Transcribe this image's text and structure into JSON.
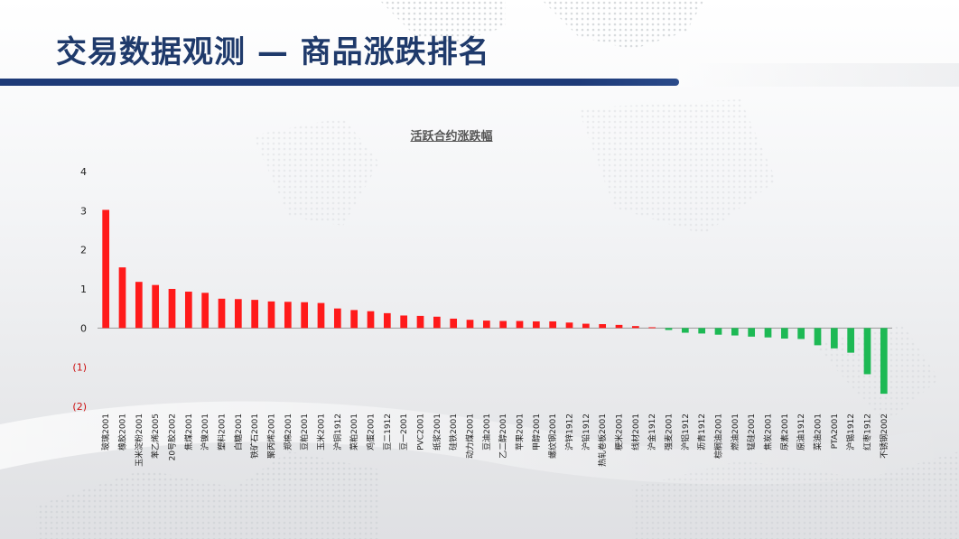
{
  "header": {
    "title": "交易数据观测 — 商品涨跌排名"
  },
  "colors": {
    "positive": "#ff1a1a",
    "negative": "#1db954",
    "title": "#1f3a6b",
    "bar_accent": "#1e3a78"
  },
  "chart_data": {
    "type": "bar",
    "title": "活跃合约涨跌幅",
    "xlabel": "",
    "ylabel": "",
    "ylim": [
      -2,
      4
    ],
    "y_ticks": [
      4,
      3,
      2,
      1,
      0,
      -1,
      -2
    ],
    "y_tick_labels": [
      "4",
      "3",
      "2",
      "1",
      "0",
      "(1)",
      "(2)"
    ],
    "grid": false,
    "categories": [
      "玻璃2001",
      "橡胶2001",
      "玉米淀粉2001",
      "苯乙烯2005",
      "20号胶2002",
      "焦煤2001",
      "沪镍2001",
      "塑料2001",
      "白糖2001",
      "铁矿石2001",
      "聚丙烯2001",
      "郑棉2001",
      "豆粕2001",
      "玉米2001",
      "沪铜1912",
      "菜粕2001",
      "鸡蛋2001",
      "豆二1912",
      "豆一2001",
      "PVC2001",
      "纸浆2001",
      "硅铁2001",
      "动力煤2001",
      "豆油2001",
      "乙二醇2001",
      "苹果2001",
      "甲醇2001",
      "螺纹钢2001",
      "沪锌1912",
      "沪铅1912",
      "热轧卷板2001",
      "粳米2001",
      "线材2001",
      "沪金1912",
      "强麦2001",
      "沪铝1912",
      "沥青1912",
      "棕榈油2001",
      "燃油2001",
      "锰硅2001",
      "焦炭2001",
      "尿素2001",
      "原油1912",
      "菜油2001",
      "PTA2001",
      "沪锡1912",
      "红枣1912",
      "不锈钢2002"
    ],
    "values": [
      3.02,
      1.55,
      1.18,
      1.1,
      1.0,
      0.93,
      0.9,
      0.75,
      0.74,
      0.72,
      0.68,
      0.67,
      0.66,
      0.64,
      0.5,
      0.46,
      0.43,
      0.38,
      0.32,
      0.31,
      0.29,
      0.24,
      0.21,
      0.19,
      0.18,
      0.18,
      0.17,
      0.17,
      0.14,
      0.11,
      0.1,
      0.08,
      0.05,
      0.02,
      -0.05,
      -0.12,
      -0.14,
      -0.17,
      -0.19,
      -0.22,
      -0.24,
      -0.27,
      -0.28,
      -0.44,
      -0.52,
      -0.63,
      -1.18,
      -1.68
    ]
  }
}
